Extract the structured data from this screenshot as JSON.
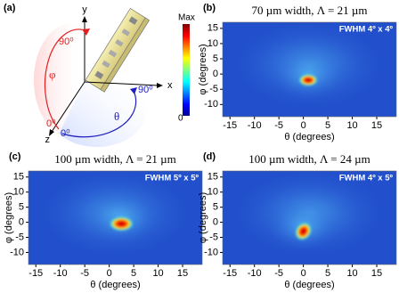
{
  "diagram": {
    "panel": "(a)",
    "x_label": "x",
    "y_label": "y",
    "z_label": "z",
    "phi": "φ",
    "theta": "θ",
    "phi_0": "0⁰",
    "phi_90": "90⁰",
    "theta_0": "0⁰",
    "theta_90": "90⁰",
    "colorbar_max": "Max",
    "colorbar_min": "0"
  },
  "chart_data": [
    {
      "type": "heatmap",
      "panel": "(b)",
      "title": "70 µm width, Λ = 21 µm",
      "annotation": "FWHM 4º x 4º",
      "xlabel": "θ (degrees)",
      "ylabel": "φ (degrees)",
      "x": [
        1
      ],
      "y": [
        -2
      ],
      "xlim": [
        -16.5,
        19
      ],
      "ylim": [
        -14,
        17
      ],
      "xticks": [
        -15,
        -10,
        -5,
        0,
        5,
        10,
        15
      ],
      "yticks": [
        -10,
        -5,
        0,
        5,
        10,
        15
      ]
    },
    {
      "type": "heatmap",
      "panel": "(c)",
      "title": "100 µm width, Λ = 21 µm",
      "annotation": "FWHM 5º x 5º",
      "xlabel": "θ (degrees)",
      "ylabel": "φ (degrees)",
      "x": [
        2.5
      ],
      "y": [
        -0.5
      ],
      "xlim": [
        -16.5,
        19
      ],
      "ylim": [
        -14,
        17
      ],
      "xticks": [
        -15,
        -10,
        -5,
        0,
        5,
        10,
        15
      ],
      "yticks": [
        -10,
        -5,
        0,
        5,
        10,
        15
      ]
    },
    {
      "type": "heatmap",
      "panel": "(d)",
      "title": "100 µm width, Λ = 24 µm",
      "annotation": "FWHM 4º x 5º",
      "xlabel": "θ (degrees)",
      "ylabel": "φ (degrees)",
      "x": [
        0
      ],
      "y": [
        -3
      ],
      "xlim": [
        -16.5,
        19
      ],
      "ylim": [
        -14,
        17
      ],
      "xticks": [
        -15,
        -10,
        -5,
        0,
        5,
        10,
        15
      ],
      "yticks": [
        -10,
        -5,
        0,
        5,
        10,
        15
      ]
    }
  ]
}
